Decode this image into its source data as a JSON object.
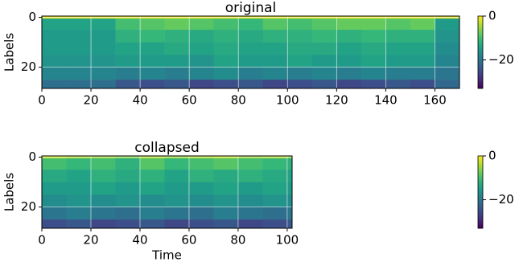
{
  "chart_data": [
    {
      "type": "heatmap",
      "title": "original",
      "ylabel": "Labels",
      "xbins": [
        0,
        10,
        20,
        30,
        40,
        50,
        60,
        70,
        80,
        90,
        100,
        110,
        120,
        130,
        140,
        150,
        160,
        170
      ],
      "ybins": [
        -0.5,
        0.5,
        5,
        10,
        15,
        20,
        25,
        28.5
      ],
      "values": [
        [
          -1,
          -1,
          -1,
          -1,
          -1,
          -1,
          -1,
          -1,
          -1,
          -1,
          -1,
          -1,
          -1,
          -1,
          -1,
          -1,
          -1
        ],
        [
          -14,
          -14,
          -14,
          -10,
          -9,
          -8,
          -9,
          -10,
          -11,
          -9,
          -10,
          -9,
          -8,
          -8,
          -9,
          -8,
          -15
        ],
        [
          -15,
          -15,
          -15,
          -12,
          -11,
          -12,
          -13,
          -12,
          -13,
          -12,
          -12,
          -11,
          -12,
          -11,
          -12,
          -12,
          -16
        ],
        [
          -15,
          -15,
          -15,
          -14,
          -14,
          -13,
          -14,
          -13,
          -14,
          -14,
          -13,
          -13,
          -14,
          -13,
          -14,
          -14,
          -17
        ],
        [
          -16,
          -16,
          -16,
          -15,
          -15,
          -15,
          -16,
          -14,
          -15,
          -15,
          -14,
          -15,
          -15,
          -14,
          -15,
          -15,
          -18
        ],
        [
          -18,
          -18,
          -18,
          -19,
          -18,
          -19,
          -18,
          -17,
          -19,
          -18,
          -19,
          -18,
          -19,
          -18,
          -19,
          -19,
          -20
        ],
        [
          -21,
          -21,
          -21,
          -24,
          -25,
          -24,
          -26,
          -25,
          -24,
          -26,
          -25,
          -24,
          -26,
          -25,
          -24,
          -25,
          -22
        ]
      ],
      "xlim": [
        0,
        170
      ],
      "ylim": [
        -0.5,
        28.5
      ],
      "invert_y": true,
      "xticks": [
        0,
        20,
        40,
        60,
        80,
        100,
        120,
        140,
        160
      ],
      "yticks": [
        0,
        20
      ],
      "clim": [
        -33,
        0
      ],
      "cticks": [
        0,
        {
          "value": -20,
          "label": "−20"
        }
      ],
      "colormap": "viridis",
      "grid": true
    },
    {
      "type": "heatmap",
      "title": "collapsed",
      "ylabel": "Labels",
      "xlabel": "Time",
      "xbins": [
        0,
        10,
        20,
        30,
        40,
        50,
        60,
        70,
        80,
        90,
        100,
        102
      ],
      "ybins": [
        -0.5,
        0.5,
        5,
        10,
        15,
        20,
        25,
        28.5
      ],
      "values": [
        [
          -3,
          -4,
          -5,
          -6,
          -4,
          -5,
          -4,
          -3,
          -5,
          -4,
          -6
        ],
        [
          -10,
          -11,
          -10,
          -12,
          -9,
          -11,
          -10,
          -9,
          -10,
          -11,
          -12
        ],
        [
          -13,
          -14,
          -12,
          -13,
          -12,
          -14,
          -12,
          -13,
          -12,
          -13,
          -14
        ],
        [
          -15,
          -15,
          -14,
          -15,
          -14,
          -15,
          -15,
          -14,
          -15,
          -14,
          -15
        ],
        [
          -17,
          -16,
          -17,
          -16,
          -17,
          -16,
          -17,
          -16,
          -17,
          -16,
          -17
        ],
        [
          -20,
          -19,
          -20,
          -21,
          -19,
          -20,
          -21,
          -19,
          -20,
          -21,
          -20
        ],
        [
          -25,
          -24,
          -26,
          -25,
          -24,
          -26,
          -25,
          -24,
          -26,
          -25,
          -24
        ]
      ],
      "xlim": [
        0,
        102
      ],
      "ylim": [
        -0.5,
        28.5
      ],
      "invert_y": true,
      "xticks": [
        0,
        20,
        40,
        60,
        80,
        100
      ],
      "yticks": [
        0,
        20
      ],
      "clim": [
        -33,
        0
      ],
      "cticks": [
        0,
        {
          "value": -20,
          "label": "−20"
        }
      ],
      "colormap": "viridis",
      "grid": true
    }
  ]
}
